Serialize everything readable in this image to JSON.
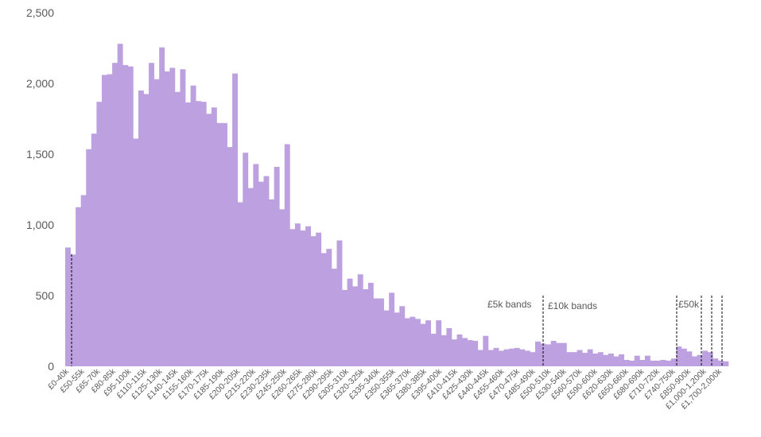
{
  "chart_data": {
    "type": "bar",
    "title": "",
    "xlabel": "",
    "ylabel": "",
    "ylim": [
      0,
      2500
    ],
    "grid": false,
    "colors": {
      "bar": "#bca0df",
      "text": "#595959",
      "marker_line": "#000000"
    },
    "y_ticks": [
      "0",
      "500",
      "1,000",
      "1,500",
      "2,000",
      "2,500"
    ],
    "x_tick_labels": [
      "£0-40k",
      "£50-55k",
      "£65-70k",
      "£80-85k",
      "£95-100k",
      "£110-115k",
      "£125-130k",
      "£140-145k",
      "£155-160k",
      "£170-175k",
      "£185-190k",
      "£200-205k",
      "£215-220k",
      "£230-235k",
      "£245-250k",
      "£260-265k",
      "£275-280k",
      "£290-295k",
      "£305-310k",
      "£320-325k",
      "£335-340k",
      "£350-355k",
      "£365-370k",
      "£380-385k",
      "£395-400k",
      "£410-415k",
      "£425-430k",
      "£440-445k",
      "£455-460k",
      "£470-475k",
      "£485-490k",
      "£500-510k",
      "£530-540k",
      "£560-570k",
      "£590-600k",
      "£620-630k",
      "£650-660k",
      "£680-690k",
      "£710-720k",
      "£740-750k",
      "£850-900k",
      "£1,000-1,200k",
      "£1,700-2,000k"
    ],
    "values": [
      840,
      790,
      1125,
      1210,
      1535,
      1645,
      1870,
      2060,
      2065,
      2145,
      2280,
      2130,
      2120,
      1610,
      1950,
      1925,
      2145,
      2030,
      2255,
      2085,
      2110,
      1940,
      2100,
      1865,
      1985,
      1875,
      1870,
      1785,
      1830,
      1720,
      1720,
      1550,
      2070,
      1160,
      1510,
      1260,
      1430,
      1305,
      1345,
      1180,
      1410,
      1110,
      1570,
      970,
      1010,
      960,
      990,
      920,
      945,
      800,
      830,
      690,
      890,
      540,
      620,
      565,
      650,
      545,
      590,
      480,
      480,
      395,
      520,
      380,
      425,
      340,
      350,
      335,
      300,
      325,
      230,
      325,
      220,
      270,
      190,
      225,
      200,
      185,
      180,
      115,
      215,
      115,
      130,
      110,
      120,
      125,
      130,
      120,
      110,
      100,
      175,
      160,
      155,
      180,
      165,
      165,
      100,
      100,
      115,
      95,
      120,
      90,
      100,
      80,
      90,
      70,
      85,
      45,
      40,
      75,
      45,
      75,
      40,
      40,
      45,
      40,
      55,
      140,
      125,
      105,
      70,
      80,
      110,
      100,
      55,
      40,
      35
    ]
  },
  "annotations": {
    "band_5k": "£5k bands",
    "band_10k": "£10k bands",
    "band_50k": "£50k"
  }
}
